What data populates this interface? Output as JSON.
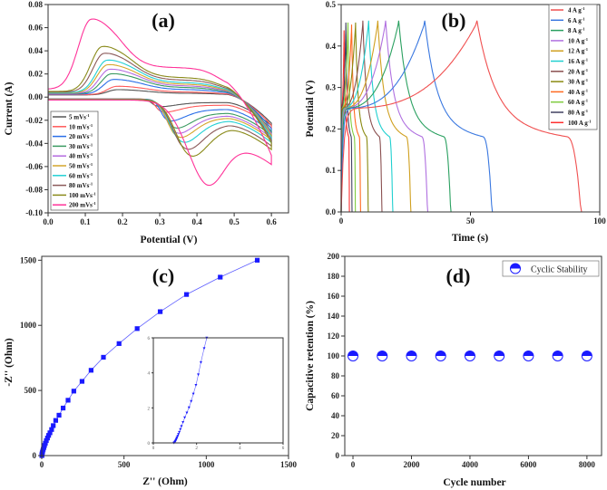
{
  "chart_data": [
    {
      "panel": "(a)",
      "type": "line",
      "xlabel": "Potential (V)",
      "ylabel": "Current (A)",
      "xlim": [
        0,
        0.646
      ],
      "ylim": [
        -0.1,
        0.08
      ],
      "xticks": [
        0.0,
        0.1,
        0.2,
        0.3,
        0.4,
        0.5,
        0.6
      ],
      "xticklabels": [
        "0.0",
        "0.1",
        "0.2",
        "0.3",
        "0.4",
        "0.5",
        "0.6"
      ],
      "yticks": [
        -0.1,
        -0.08,
        -0.06,
        -0.04,
        -0.02,
        0.0,
        0.02,
        0.04,
        0.06,
        0.08
      ],
      "yticklabels": [
        "-0.10",
        "-0.08",
        "-0.06",
        "-0.04",
        "-0.02",
        "0.00",
        "0.02",
        "0.04",
        "0.06",
        "0.08"
      ],
      "legend_position": "bottom-left",
      "series": [
        {
          "name": "5 mVs-1",
          "label": "5 mVs",
          "sup": "-1",
          "color": "#555555",
          "anodic_peak": [
            0.185,
            0.005
          ],
          "cathodic_peak": [
            0.29,
            -0.007
          ]
        },
        {
          "name": "10 mVs-1",
          "label": "10 mVs",
          "sup": "-1",
          "color": "#ff5a5a",
          "anodic_peak": [
            0.185,
            0.008
          ],
          "cathodic_peak": [
            0.3,
            -0.012
          ]
        },
        {
          "name": "20 mVs-1",
          "label": "20 mVs",
          "sup": "-1",
          "color": "#2a6ee8",
          "anodic_peak": [
            0.175,
            0.014
          ],
          "cathodic_peak": [
            0.315,
            -0.02
          ]
        },
        {
          "name": "30 mVs-1",
          "label": "30 mVs",
          "sup": "-1",
          "color": "#3a9a60",
          "anodic_peak": [
            0.17,
            0.019
          ],
          "cathodic_peak": [
            0.33,
            -0.027
          ]
        },
        {
          "name": "40 mVs-1",
          "label": "40 mVs",
          "sup": "-1",
          "color": "#b56be0",
          "anodic_peak": [
            0.165,
            0.023
          ],
          "cathodic_peak": [
            0.335,
            -0.032
          ]
        },
        {
          "name": "50 mVs-1",
          "label": "50 mVs",
          "sup": "-1",
          "color": "#d4a62a",
          "anodic_peak": [
            0.16,
            0.027
          ],
          "cathodic_peak": [
            0.34,
            -0.036
          ]
        },
        {
          "name": "60 mVs-1",
          "label": "60 mVs",
          "sup": "-1",
          "color": "#22d0d4",
          "anodic_peak": [
            0.158,
            0.031
          ],
          "cathodic_peak": [
            0.35,
            -0.041
          ]
        },
        {
          "name": "80 mVs-1",
          "label": "80 mVs",
          "sup": "-1",
          "color": "#8b5a5a",
          "anodic_peak": [
            0.15,
            0.037
          ],
          "cathodic_peak": [
            0.36,
            -0.048
          ]
        },
        {
          "name": "100 mVs-1",
          "label": "100 mVs",
          "sup": "-1",
          "color": "#8a8a1a",
          "anodic_peak": [
            0.145,
            0.043
          ],
          "cathodic_peak": [
            0.372,
            -0.055
          ]
        },
        {
          "name": "200 mVs-1",
          "label": "200 mVs",
          "sup": "-1",
          "color": "#ff3399",
          "anodic_peak": [
            0.115,
            0.067
          ],
          "cathodic_peak": [
            0.418,
            -0.085
          ]
        }
      ]
    },
    {
      "panel": "(b)",
      "type": "line",
      "xlabel": "Time (s)",
      "ylabel": "Potential (V)",
      "xlim": [
        0,
        100
      ],
      "ylim": [
        0,
        0.5
      ],
      "xticks": [
        0,
        50,
        100
      ],
      "xticklabels": [
        "0",
        "50",
        "100"
      ],
      "yticks": [
        0,
        0.1,
        0.2,
        0.3,
        0.4,
        0.5
      ],
      "yticklabels": [
        "0.0",
        "0.1",
        "0.2",
        "0.3",
        "0.4",
        "0.5"
      ],
      "legend_position": "top-right",
      "series": [
        {
          "name": "4 A g-1",
          "label": "4 A g",
          "sup": "-1",
          "color": "#f05050",
          "charge_end_s": 52,
          "discharge_end_s": 93,
          "max_potential": 0.45
        },
        {
          "name": "6 A g-1",
          "label": "6 A g",
          "sup": "-1",
          "color": "#3a78e0",
          "charge_end_s": 32,
          "discharge_end_s": 58.5,
          "max_potential": 0.45
        },
        {
          "name": "8 A g-1",
          "label": "8 A g",
          "sup": "-1",
          "color": "#2aa060",
          "charge_end_s": 22,
          "discharge_end_s": 42.5,
          "max_potential": 0.45
        },
        {
          "name": "10 A g-1",
          "label": "10 A g",
          "sup": "-1",
          "color": "#b070e0",
          "charge_end_s": 17,
          "discharge_end_s": 33.5,
          "max_potential": 0.45
        },
        {
          "name": "12 A g-1",
          "label": "12 A g",
          "sup": "-1",
          "color": "#d0a020",
          "charge_end_s": 14,
          "discharge_end_s": 27,
          "max_potential": 0.45
        },
        {
          "name": "16 A g-1",
          "label": "16 A g",
          "sup": "-1",
          "color": "#20d0d0",
          "charge_end_s": 10.5,
          "discharge_end_s": 20,
          "max_potential": 0.45
        },
        {
          "name": "20 A g-1",
          "label": "20 A g",
          "sup": "-1",
          "color": "#8a5050",
          "charge_end_s": 8.3,
          "discharge_end_s": 15.8,
          "max_potential": 0.45
        },
        {
          "name": "30 A g-1",
          "label": "30 A g",
          "sup": "-1",
          "color": "#8a8a10",
          "charge_end_s": 5.5,
          "discharge_end_s": 10.5,
          "max_potential": 0.445
        },
        {
          "name": "40 A g-1",
          "label": "40 A g",
          "sup": "-1",
          "color": "#ff6a20",
          "charge_end_s": 4,
          "discharge_end_s": 7.5,
          "max_potential": 0.44
        },
        {
          "name": "60 A g-1",
          "label": "60 A g",
          "sup": "-1",
          "color": "#80cc40",
          "charge_end_s": 2.6,
          "discharge_end_s": 5.5,
          "max_potential": 0.445
        },
        {
          "name": "80 A g-1",
          "label": "80 A g",
          "sup": "-1",
          "color": "#404060",
          "charge_end_s": 1.8,
          "discharge_end_s": 4.2,
          "max_potential": 0.445
        },
        {
          "name": "100 A g-1",
          "label": "100 A g",
          "sup": "-1",
          "color": "#ff3030",
          "charge_end_s": 1.1,
          "discharge_end_s": 3.2,
          "max_potential": 0.425
        }
      ]
    },
    {
      "panel": "(c)",
      "type": "scatter",
      "xlabel": "Z'' (Ohm)",
      "ylabel": "-Z'' (Ohm)",
      "xlim": [
        0,
        1500
      ],
      "ylim": [
        0,
        1530
      ],
      "xticks": [
        0,
        500,
        1000,
        1500
      ],
      "xticklabels": [
        "0",
        "500",
        "1000",
        "1500"
      ],
      "yticks": [
        0,
        500,
        1000,
        1500
      ],
      "yticklabels": [
        "0",
        "500",
        "1000",
        "1500"
      ],
      "color": "#1a1aff",
      "points": [
        [
          0.8,
          0
        ],
        [
          1,
          6
        ],
        [
          2,
          14
        ],
        [
          4,
          24
        ],
        [
          6,
          35
        ],
        [
          9,
          48
        ],
        [
          13,
          62
        ],
        [
          17,
          78
        ],
        [
          22,
          95
        ],
        [
          28,
          115
        ],
        [
          35,
          135
        ],
        [
          42,
          155
        ],
        [
          50,
          175
        ],
        [
          60,
          200
        ],
        [
          70,
          230
        ],
        [
          85,
          270
        ],
        [
          105,
          310
        ],
        [
          130,
          365
        ],
        [
          160,
          425
        ],
        [
          195,
          495
        ],
        [
          245,
          570
        ],
        [
          300,
          655
        ],
        [
          375,
          755
        ],
        [
          470,
          860
        ],
        [
          580,
          975
        ],
        [
          720,
          1105
        ],
        [
          880,
          1237
        ],
        [
          1085,
          1370
        ],
        [
          1310,
          1500
        ]
      ],
      "inset": {
        "xlim": [
          0,
          6
        ],
        "ylim": [
          0,
          6
        ],
        "xticks": [
          0,
          2,
          4,
          6
        ],
        "xticklabels": [
          "0",
          "2",
          "4",
          "6"
        ],
        "yticks": [
          0,
          2,
          4,
          6
        ],
        "yticklabels": [
          "0",
          "2",
          "4",
          "6"
        ],
        "points": [
          [
            0.95,
            0
          ],
          [
            0.98,
            0.03
          ],
          [
            1.0,
            0.06
          ],
          [
            1.02,
            0.1
          ],
          [
            1.04,
            0.15
          ],
          [
            1.06,
            0.2
          ],
          [
            1.08,
            0.26
          ],
          [
            1.1,
            0.32
          ],
          [
            1.13,
            0.4
          ],
          [
            1.16,
            0.5
          ],
          [
            1.2,
            0.62
          ],
          [
            1.25,
            0.78
          ],
          [
            1.3,
            0.95
          ],
          [
            1.37,
            1.18
          ],
          [
            1.45,
            1.45
          ],
          [
            1.55,
            1.72
          ],
          [
            1.65,
            2.02
          ],
          [
            1.75,
            2.38
          ],
          [
            1.85,
            2.8
          ],
          [
            1.97,
            3.3
          ],
          [
            2.08,
            3.9
          ],
          [
            2.2,
            4.6
          ],
          [
            2.35,
            5.4
          ],
          [
            2.47,
            6.0
          ]
        ]
      }
    },
    {
      "panel": "(d)",
      "type": "scatter",
      "xlabel": "Cycle number",
      "ylabel": "Capacitive retention (%)",
      "xlim": [
        -280,
        8500
      ],
      "ylim": [
        0,
        200
      ],
      "xticks": [
        0,
        2000,
        4000,
        6000,
        8000
      ],
      "xticklabels": [
        "0",
        "2000",
        "4000",
        "6000",
        "8000"
      ],
      "yticks": [
        0,
        20,
        40,
        60,
        80,
        100,
        120,
        140,
        160,
        180,
        200
      ],
      "yticklabels": [
        "0",
        "20",
        "40",
        "60",
        "80",
        "100",
        "120",
        "140",
        "160",
        "180",
        "200"
      ],
      "legend_position": "top-right",
      "legend": "Cyclic Stability",
      "color": "#1a1aff",
      "x": [
        0,
        1000,
        2000,
        3000,
        4000,
        5000,
        6000,
        7000,
        8000
      ],
      "y": [
        100,
        100,
        100,
        100,
        100,
        100,
        100,
        100,
        100
      ]
    }
  ]
}
